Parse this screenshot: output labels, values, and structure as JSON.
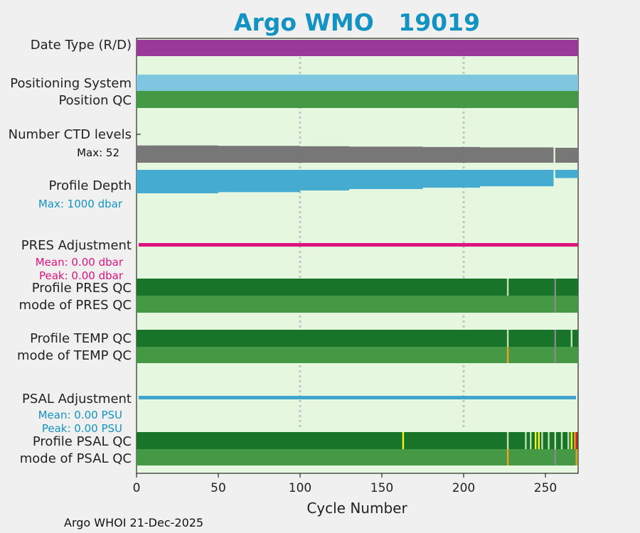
{
  "chart_data": {
    "type": "bar",
    "title": "Argo WMO   19019",
    "xlabel": "Cycle Number",
    "footer": "Argo WHOI 21-Dec-2025",
    "xlim": [
      0,
      270
    ],
    "xticks": [
      0,
      50,
      100,
      150,
      200,
      250
    ],
    "gridlines_x": [
      100,
      200
    ],
    "colors": {
      "background": "#f0f0f0",
      "plot_bg": "#e5f8df",
      "title": "#1393c2",
      "date_type": "#993a99",
      "positioning": "#7fc6e0",
      "qc_good_light": "#469944",
      "qc_good_dark": "#177428",
      "ctd": "#777777",
      "depth": "#46abd0",
      "pres_adj": "#e0127e",
      "psal_adj": "#3fa5cd",
      "qc_orange": "#f0a020",
      "qc_yellow": "#f5f520",
      "qc_red": "#d81e1e",
      "qc_pale": "#bfe0b0",
      "qc_grey": "#888888"
    },
    "rows": {
      "date_type_label": "Date Type (R/D)",
      "positioning_label": "Positioning System",
      "position_qc_label": "Position QC",
      "ctd_label": "Number CTD levels",
      "ctd_max": "Max: 52",
      "depth_label": "Profile Depth",
      "depth_max": "Max: 1000 dbar",
      "pres_adj_label": "PRES Adjustment",
      "pres_adj_mean": "Mean: 0.00 dbar",
      "pres_adj_peak": "Peak: 0.00 dbar",
      "profile_pres_qc_label": "Profile PRES QC",
      "mode_pres_qc_label": "mode of PRES QC",
      "profile_temp_qc_label": "Profile TEMP QC",
      "mode_temp_qc_label": "mode of TEMP QC",
      "psal_adj_label": "PSAL Adjustment",
      "psal_adj_mean": "Mean: 0.00 PSU",
      "psal_adj_peak": "Peak: 0.00 PSU",
      "profile_psal_qc_label": "Profile PSAL QC",
      "mode_psal_qc_label": "mode of PSAL QC"
    },
    "ctd_levels_series": [
      {
        "from": 0,
        "to": 50,
        "value": 0.9
      },
      {
        "from": 50,
        "to": 100,
        "value": 0.88
      },
      {
        "from": 100,
        "to": 130,
        "value": 0.86
      },
      {
        "from": 130,
        "to": 175,
        "value": 0.84
      },
      {
        "from": 175,
        "to": 210,
        "value": 0.82
      },
      {
        "from": 210,
        "to": 255,
        "value": 0.8
      },
      {
        "from": 256,
        "to": 270,
        "value": 0.78
      }
    ],
    "profile_depth_series": [
      {
        "from": 0,
        "to": 50,
        "value": 1.0
      },
      {
        "from": 50,
        "to": 100,
        "value": 0.95
      },
      {
        "from": 100,
        "to": 130,
        "value": 0.88
      },
      {
        "from": 130,
        "to": 175,
        "value": 0.82
      },
      {
        "from": 175,
        "to": 210,
        "value": 0.76
      },
      {
        "from": 210,
        "to": 255,
        "value": 0.7
      },
      {
        "from": 256,
        "to": 270,
        "value": 0.35
      }
    ],
    "qc_events": {
      "profile_pres_qc": [
        {
          "cycle": 227,
          "color": "qc_pale"
        },
        {
          "cycle": 256,
          "color": "qc_grey"
        }
      ],
      "mode_pres_qc": [
        {
          "cycle": 256,
          "color": "qc_grey"
        }
      ],
      "profile_temp_qc": [
        {
          "cycle": 227,
          "color": "qc_pale"
        },
        {
          "cycle": 256,
          "color": "qc_grey"
        },
        {
          "cycle": 266,
          "color": "qc_pale"
        }
      ],
      "mode_temp_qc": [
        {
          "cycle": 227,
          "color": "qc_orange"
        },
        {
          "cycle": 256,
          "color": "qc_grey"
        }
      ],
      "profile_psal_qc": [
        {
          "cycle": 163,
          "color": "qc_yellow"
        },
        {
          "cycle": 227,
          "color": "qc_pale"
        },
        {
          "cycle": 238,
          "color": "qc_pale"
        },
        {
          "cycle": 241,
          "color": "qc_pale"
        },
        {
          "cycle": 244,
          "color": "qc_yellow"
        },
        {
          "cycle": 246,
          "color": "qc_yellow"
        },
        {
          "cycle": 248,
          "color": "qc_pale"
        },
        {
          "cycle": 252,
          "color": "qc_pale"
        },
        {
          "cycle": 256,
          "color": "qc_pale"
        },
        {
          "cycle": 260,
          "color": "qc_pale"
        },
        {
          "cycle": 264,
          "color": "qc_pale"
        },
        {
          "cycle": 266,
          "color": "qc_yellow"
        },
        {
          "cycle": 268,
          "color": "qc_orange"
        },
        {
          "cycle": 269,
          "color": "qc_red"
        }
      ],
      "mode_psal_qc": [
        {
          "cycle": 227,
          "color": "qc_orange"
        },
        {
          "cycle": 256,
          "color": "qc_grey"
        },
        {
          "cycle": 269,
          "color": "qc_orange"
        }
      ]
    }
  }
}
